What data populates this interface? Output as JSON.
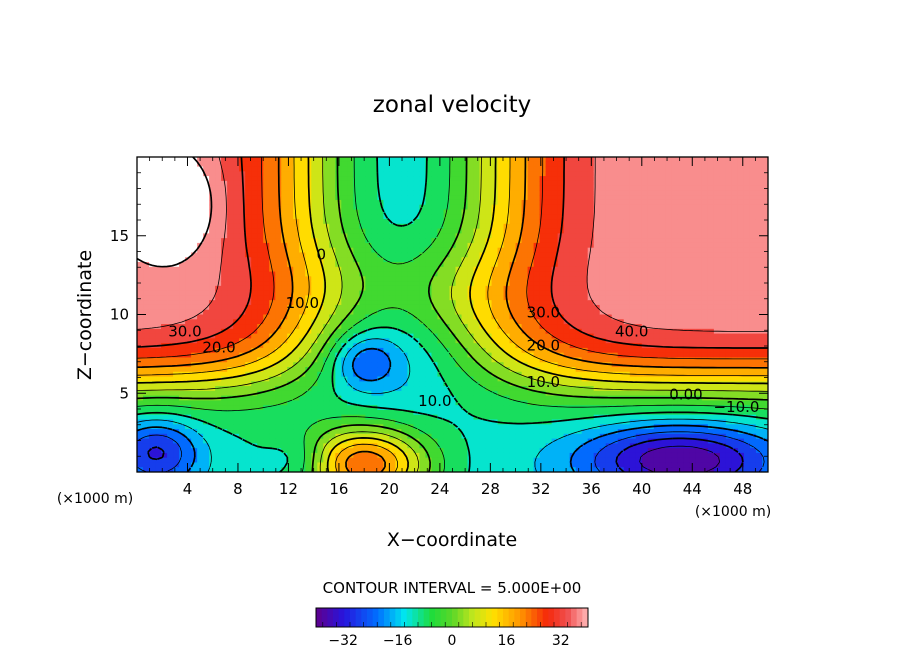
{
  "chart_data": {
    "type": "contour",
    "title": "zonal velocity",
    "xlabel": "X−coordinate",
    "ylabel": "Z−coordinate",
    "x_unit_left": "(×1000 m)",
    "x_unit_right": "(×1000 m)",
    "xlim": [
      0,
      50
    ],
    "ylim": [
      0,
      20
    ],
    "x_ticks": [
      4,
      8,
      12,
      16,
      20,
      24,
      28,
      32,
      36,
      40,
      44,
      48
    ],
    "y_ticks": [
      5,
      10,
      15
    ],
    "contour_interval_text": "CONTOUR INTERVAL = 5.000E+00",
    "contour_interval": 5.0,
    "value_range": [
      -40,
      40
    ],
    "contour_labels": [
      {
        "text": "30.0",
        "x": 3.8,
        "y": 8.6
      },
      {
        "text": "20.0",
        "x": 6.5,
        "y": 7.6
      },
      {
        "text": "10.0",
        "x": 13.1,
        "y": 10.4
      },
      {
        "text": "0",
        "x": 14.6,
        "y": 13.5
      },
      {
        "text": "10.0",
        "x": 23.6,
        "y": 4.2
      },
      {
        "text": "30.0",
        "x": 32.2,
        "y": 9.8
      },
      {
        "text": "20.0",
        "x": 32.2,
        "y": 7.7
      },
      {
        "text": "10.0",
        "x": 32.2,
        "y": 5.4
      },
      {
        "text": "40.0",
        "x": 39.2,
        "y": 8.6
      },
      {
        "text": "0.00",
        "x": 43.5,
        "y": 4.6
      },
      {
        "text": "−10.0",
        "x": 47.5,
        "y": 3.8
      }
    ],
    "colorbar": {
      "ticks": [
        -32,
        -16,
        0,
        16,
        32
      ],
      "tick_labels": [
        "−32",
        "−16",
        "0",
        "16",
        "32"
      ],
      "range": [
        -40,
        40
      ]
    }
  }
}
